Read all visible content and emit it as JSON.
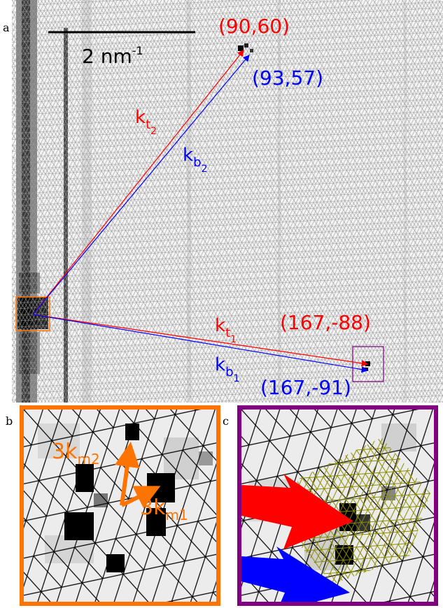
{
  "panels": {
    "a": {
      "letter": "a"
    },
    "b": {
      "letter": "b"
    },
    "c": {
      "letter": "c"
    }
  },
  "scalebar": {
    "label": "2 nm",
    "exponent": "-1"
  },
  "vectors": {
    "t2": {
      "name": "k",
      "sub": "t",
      "subsub": "2",
      "coord": "(90,60)",
      "color": "#ff0000"
    },
    "b2": {
      "name": "k",
      "sub": "b",
      "subsub": "2",
      "coord": "(93,57)",
      "color": "#0000ff"
    },
    "t1": {
      "name": "k",
      "sub": "t",
      "subsub": "1",
      "coord": "(167,-88)",
      "color": "#ff0000"
    },
    "b1": {
      "name": "k",
      "sub": "b",
      "subsub": "1",
      "coord": "(167,-91)",
      "color": "#0000ff"
    }
  },
  "inset_b": {
    "m2": {
      "prefix": "3k",
      "sub": "m2"
    },
    "m1": {
      "prefix": "3k",
      "sub": "m1"
    },
    "color": "#ff7300"
  },
  "inset_c": {
    "frame_color": "#800080"
  }
}
